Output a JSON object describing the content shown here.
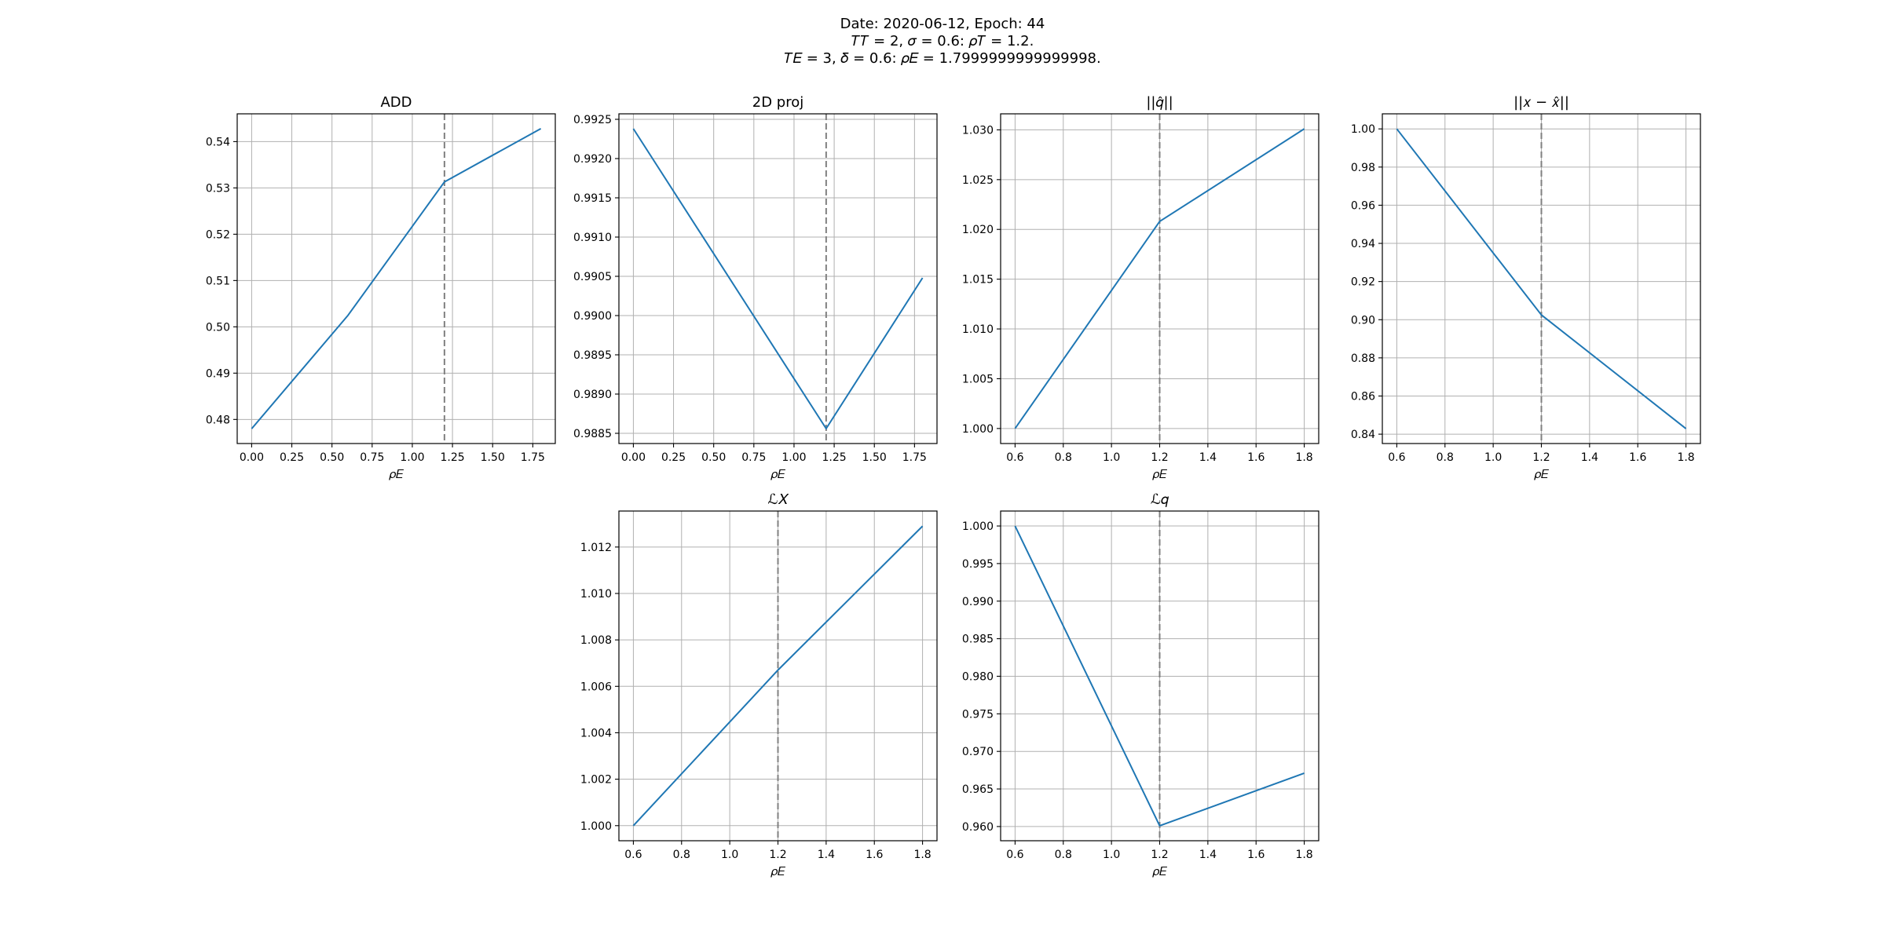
{
  "figure": {
    "suptitle": [
      "Date: 2020-06-12, Epoch: 44",
      "T_T = 2, σ = 0.6: ρ_T = 1.2.",
      "T_E = 3, δ = 0.6: ρ_E = 1.7999999999999998."
    ],
    "suptitle_display": [
      "Date: 2020-06-12, Epoch: 44",
      "𝑇𝑇 = 2, 𝜎 = 0.6: 𝜌𝑇 = 1.2.",
      "𝑇𝐸 = 3, 𝛿 = 0.6: 𝜌𝐸 = 1.7999999999999998."
    ]
  },
  "colors": {
    "series": "#1f77b4",
    "reference_line": "#808080",
    "grid": "#b0b0b0"
  },
  "chart_data": [
    {
      "type": "line",
      "title": "ADD",
      "xlabel": "ρ_E",
      "xlabel_display": "𝜌𝐸",
      "x": [
        0.0,
        0.6,
        1.2,
        1.8
      ],
      "series": [
        {
          "values": [
            0.478,
            0.5025,
            0.5313,
            0.5428
          ]
        }
      ],
      "xlim": [
        -0.09,
        1.89
      ],
      "ylim": [
        0.4748,
        0.546
      ],
      "xticks": [
        0.0,
        0.25,
        0.5,
        0.75,
        1.0,
        1.25,
        1.5,
        1.75
      ],
      "xtick_labels": [
        "0.00",
        "0.25",
        "0.50",
        "0.75",
        "1.00",
        "1.25",
        "1.50",
        "1.75"
      ],
      "yticks": [
        0.48,
        0.49,
        0.5,
        0.51,
        0.52,
        0.53,
        0.54
      ],
      "ytick_labels": [
        "0.48",
        "0.49",
        "0.50",
        "0.51",
        "0.52",
        "0.53",
        "0.54"
      ],
      "vline": 1.2,
      "grid": true
    },
    {
      "type": "line",
      "title": "2D proj",
      "xlabel": "ρ_E",
      "xlabel_display": "𝜌𝐸",
      "x": [
        0.0,
        1.2,
        1.8
      ],
      "series": [
        {
          "values": [
            0.99238,
            0.98856,
            0.99048
          ]
        }
      ],
      "xlim": [
        -0.09,
        1.89
      ],
      "ylim": [
        0.98837,
        0.99257
      ],
      "xticks": [
        0.0,
        0.25,
        0.5,
        0.75,
        1.0,
        1.25,
        1.5,
        1.75
      ],
      "xtick_labels": [
        "0.00",
        "0.25",
        "0.50",
        "0.75",
        "1.00",
        "1.25",
        "1.50",
        "1.75"
      ],
      "yticks": [
        0.9885,
        0.989,
        0.9895,
        0.99,
        0.9905,
        0.991,
        0.9915,
        0.992,
        0.9925
      ],
      "ytick_labels": [
        "0.9885",
        "0.9890",
        "0.9895",
        "0.9900",
        "0.9905",
        "0.9910",
        "0.9915",
        "0.9920",
        "0.9925"
      ],
      "vline": 1.2,
      "grid": true
    },
    {
      "type": "line",
      "title": "||q̂||",
      "title_display": "||𝑞̂||",
      "xlabel": "ρ_E",
      "xlabel_display": "𝜌𝐸",
      "x": [
        0.6,
        1.2,
        1.8
      ],
      "series": [
        {
          "values": [
            1.0,
            1.0208,
            1.0301
          ]
        }
      ],
      "xlim": [
        0.54,
        1.86
      ],
      "ylim": [
        0.99849,
        1.03161
      ],
      "xticks": [
        0.6,
        0.8,
        1.0,
        1.2,
        1.4,
        1.6,
        1.8
      ],
      "xtick_labels": [
        "0.6",
        "0.8",
        "1.0",
        "1.2",
        "1.4",
        "1.6",
        "1.8"
      ],
      "yticks": [
        1.0,
        1.005,
        1.01,
        1.015,
        1.02,
        1.025,
        1.03
      ],
      "ytick_labels": [
        "1.000",
        "1.005",
        "1.010",
        "1.015",
        "1.020",
        "1.025",
        "1.030"
      ],
      "vline": 1.2,
      "grid": true
    },
    {
      "type": "line",
      "title": "||x − x̂||",
      "title_display": "||𝑥 − 𝑥̂||",
      "xlabel": "ρ_E",
      "xlabel_display": "𝜌𝐸",
      "x": [
        0.6,
        1.2,
        1.8
      ],
      "series": [
        {
          "values": [
            1.0,
            0.9025,
            0.8429
          ]
        }
      ],
      "xlim": [
        0.54,
        1.86
      ],
      "ylim": [
        0.8351,
        1.0079
      ],
      "xticks": [
        0.6,
        0.8,
        1.0,
        1.2,
        1.4,
        1.6,
        1.8
      ],
      "xtick_labels": [
        "0.6",
        "0.8",
        "1.0",
        "1.2",
        "1.4",
        "1.6",
        "1.8"
      ],
      "yticks": [
        0.84,
        0.86,
        0.88,
        0.9,
        0.92,
        0.94,
        0.96,
        0.98,
        1.0
      ],
      "ytick_labels": [
        "0.84",
        "0.86",
        "0.88",
        "0.90",
        "0.92",
        "0.94",
        "0.96",
        "0.98",
        "1.00"
      ],
      "vline": 1.2,
      "grid": true
    },
    {
      "type": "line",
      "title": "L_X",
      "title_display": "ℒ𝑋",
      "xlabel": "ρ_E",
      "xlabel_display": "𝜌𝐸",
      "x": [
        0.6,
        1.2,
        1.8
      ],
      "series": [
        {
          "values": [
            1.0,
            1.0067,
            1.0129
          ]
        }
      ],
      "xlim": [
        0.54,
        1.86
      ],
      "ylim": [
        0.99935,
        1.01355
      ],
      "xticks": [
        0.6,
        0.8,
        1.0,
        1.2,
        1.4,
        1.6,
        1.8
      ],
      "xtick_labels": [
        "0.6",
        "0.8",
        "1.0",
        "1.2",
        "1.4",
        "1.6",
        "1.8"
      ],
      "yticks": [
        1.0,
        1.002,
        1.004,
        1.006,
        1.008,
        1.01,
        1.012
      ],
      "ytick_labels": [
        "1.000",
        "1.002",
        "1.004",
        "1.006",
        "1.008",
        "1.010",
        "1.012"
      ],
      "vline": 1.2,
      "grid": true
    },
    {
      "type": "line",
      "title": "L_q",
      "title_display": "ℒ𝑞",
      "xlabel": "ρ_E",
      "xlabel_display": "𝜌𝐸",
      "x": [
        0.6,
        1.2,
        1.8
      ],
      "series": [
        {
          "values": [
            1.0,
            0.9601,
            0.9671
          ]
        }
      ],
      "xlim": [
        0.54,
        1.86
      ],
      "ylim": [
        0.95811,
        1.00199
      ],
      "xticks": [
        0.6,
        0.8,
        1.0,
        1.2,
        1.4,
        1.6,
        1.8
      ],
      "xtick_labels": [
        "0.6",
        "0.8",
        "1.0",
        "1.2",
        "1.4",
        "1.6",
        "1.8"
      ],
      "yticks": [
        0.96,
        0.965,
        0.97,
        0.975,
        0.98,
        0.985,
        0.99,
        0.995,
        1.0
      ],
      "ytick_labels": [
        "0.960",
        "0.965",
        "0.970",
        "0.975",
        "0.980",
        "0.985",
        "0.990",
        "0.995",
        "1.000"
      ],
      "vline": 1.2,
      "grid": true
    }
  ]
}
